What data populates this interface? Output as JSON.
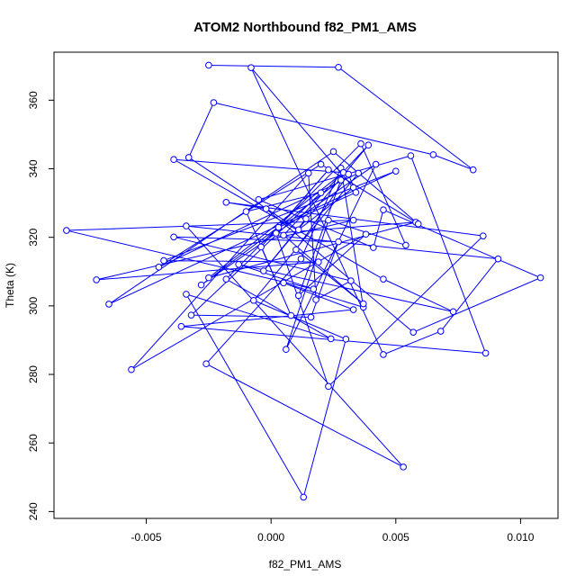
{
  "chart_data": {
    "type": "line",
    "title": "ATOM2 Northbound f82_PM1_AMS",
    "xlabel": "f82_PM1_AMS",
    "ylabel": "Theta (K)",
    "xlim": [
      -0.0087,
      0.0115
    ],
    "ylim": [
      238,
      374
    ],
    "xticks": [
      -0.005,
      0.0,
      0.005,
      0.01
    ],
    "xtick_labels": [
      "-0.005",
      "0.000",
      "0.005",
      "0.010"
    ],
    "yticks": [
      240,
      260,
      280,
      300,
      320,
      340,
      360
    ],
    "ytick_labels": [
      "240",
      "260",
      "280",
      "300",
      "320",
      "340",
      "360"
    ],
    "grid": false,
    "line_color": "#0000ff",
    "marker": "open-circle",
    "series": [
      {
        "x": [
          -0.0025,
          0.0027,
          0.0081,
          0.0065,
          -0.0023,
          -0.0033,
          0.0011,
          0.0033,
          -0.0008,
          0.0045,
          0.0068,
          0.0091,
          -0.0034,
          0.0053,
          -0.0026,
          0.0012,
          0.0028,
          0.0037,
          0.0005,
          0.0033,
          -0.0036,
          0.0086,
          0.0056,
          -0.0005,
          0.0041,
          0.0045,
          0.0108,
          0.0057,
          -0.0002,
          -0.0018,
          0.0085,
          0.0023,
          0.0002,
          0.0058,
          -0.0025,
          0.0029,
          -0.0039,
          0.0045,
          0.0073,
          -0.0013,
          0.0017,
          -0.0082,
          0.0033,
          -0.007,
          0.0019,
          -0.0043,
          0.005,
          -0.0065,
          0.0025,
          0.0059,
          0.002,
          -0.0045,
          0.0035,
          -0.0007,
          0.003,
          0.0013,
          -0.0034,
          0.0024,
          -0.0018,
          0.0036,
          0.0054,
          0.0023,
          0.0006,
          0.0042,
          -0.0028,
          0.0028,
          0.0011,
          0.0038,
          -0.0056,
          0.0015,
          0.0018,
          0.0032,
          -0.0039,
          0.0027,
          0.0016,
          -0.0032,
          0.002,
          -0.001,
          0.0008,
          -0.0004,
          0.0023,
          0.0003,
          0.0034,
          0.0031,
          0.001,
          0.0037,
          0.0005,
          0.0039,
          -0.0003,
          0.0014
        ],
        "y": [
          370.2,
          369.6,
          339.7,
          344.1,
          359.3,
          343.3,
          322.2,
          334.5,
          369.5,
          285.8,
          292.6,
          313.7,
          323.3,
          253.0,
          283.1,
          313.7,
          340.2,
          299.6,
          306.7,
          298.9,
          294.0,
          286.2,
          343.8,
          331.0,
          317.0,
          328.0,
          308.2,
          292.3,
          328.3,
          330.2,
          320.4,
          276.5,
          321.2,
          324.4,
          308.2,
          338.9,
          342.7,
          307.8,
          298.3,
          312.1,
          304.9,
          322.0,
          325.0,
          307.6,
          312.8,
          313.2,
          339.3,
          300.5,
          345.0,
          323.9,
          341.3,
          311.3,
          338.7,
          301.6,
          290.3,
          244.2,
          303.4,
          290.4,
          307.8,
          347.3,
          317.7,
          325.0,
          287.3,
          341.3,
          306.1,
          336.7,
          303.0,
          320.9,
          281.4,
          338.7,
          301.8,
          307.3,
          320.1,
          318.7,
          296.7,
          297.3,
          333.0,
          327.5,
          297.2,
          317.2,
          339.7,
          322.9,
          333.1,
          338.4,
          316.4,
          300.6,
          320.6,
          346.9,
          310.2,
          325.4
        ]
      }
    ]
  }
}
